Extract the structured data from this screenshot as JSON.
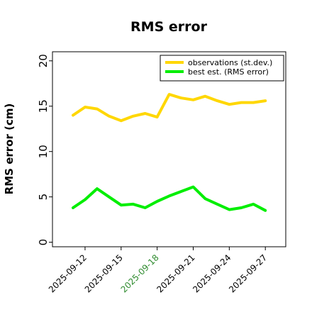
{
  "chart_data": {
    "type": "line",
    "title": "RMS error",
    "xlabel": "",
    "ylabel": "RMS error (cm)",
    "ylim": [
      -0.5,
      21
    ],
    "yticks": [
      0,
      5,
      10,
      15,
      20
    ],
    "x": [
      "2025-09-11",
      "2025-09-12",
      "2025-09-13",
      "2025-09-14",
      "2025-09-15",
      "2025-09-16",
      "2025-09-17",
      "2025-09-18",
      "2025-09-19",
      "2025-09-20",
      "2025-09-21",
      "2025-09-22",
      "2025-09-23",
      "2025-09-24",
      "2025-09-25",
      "2025-09-26",
      "2025-09-27"
    ],
    "xticks": [
      "2025-09-12",
      "2025-09-15",
      "2025-09-18",
      "2025-09-21",
      "2025-09-24",
      "2025-09-27"
    ],
    "highlight_tick": "2025-09-18",
    "highlight_color": "#2e8b2e",
    "series": [
      {
        "name": "observations (st.dev.)",
        "color": "#ffd700",
        "values": [
          14.0,
          14.9,
          14.7,
          13.9,
          13.4,
          13.9,
          14.2,
          13.8,
          16.3,
          15.9,
          15.7,
          16.1,
          15.6,
          15.2,
          15.4,
          15.4,
          15.6
        ]
      },
      {
        "name": "best est. (RMS error)",
        "color": "#00ee00",
        "values": [
          3.8,
          4.7,
          5.9,
          5.0,
          4.1,
          4.2,
          3.8,
          4.5,
          5.1,
          5.6,
          6.1,
          4.8,
          4.2,
          3.6,
          3.8,
          4.2,
          3.5
        ]
      }
    ],
    "legend_position": "top-right",
    "grid": false
  }
}
